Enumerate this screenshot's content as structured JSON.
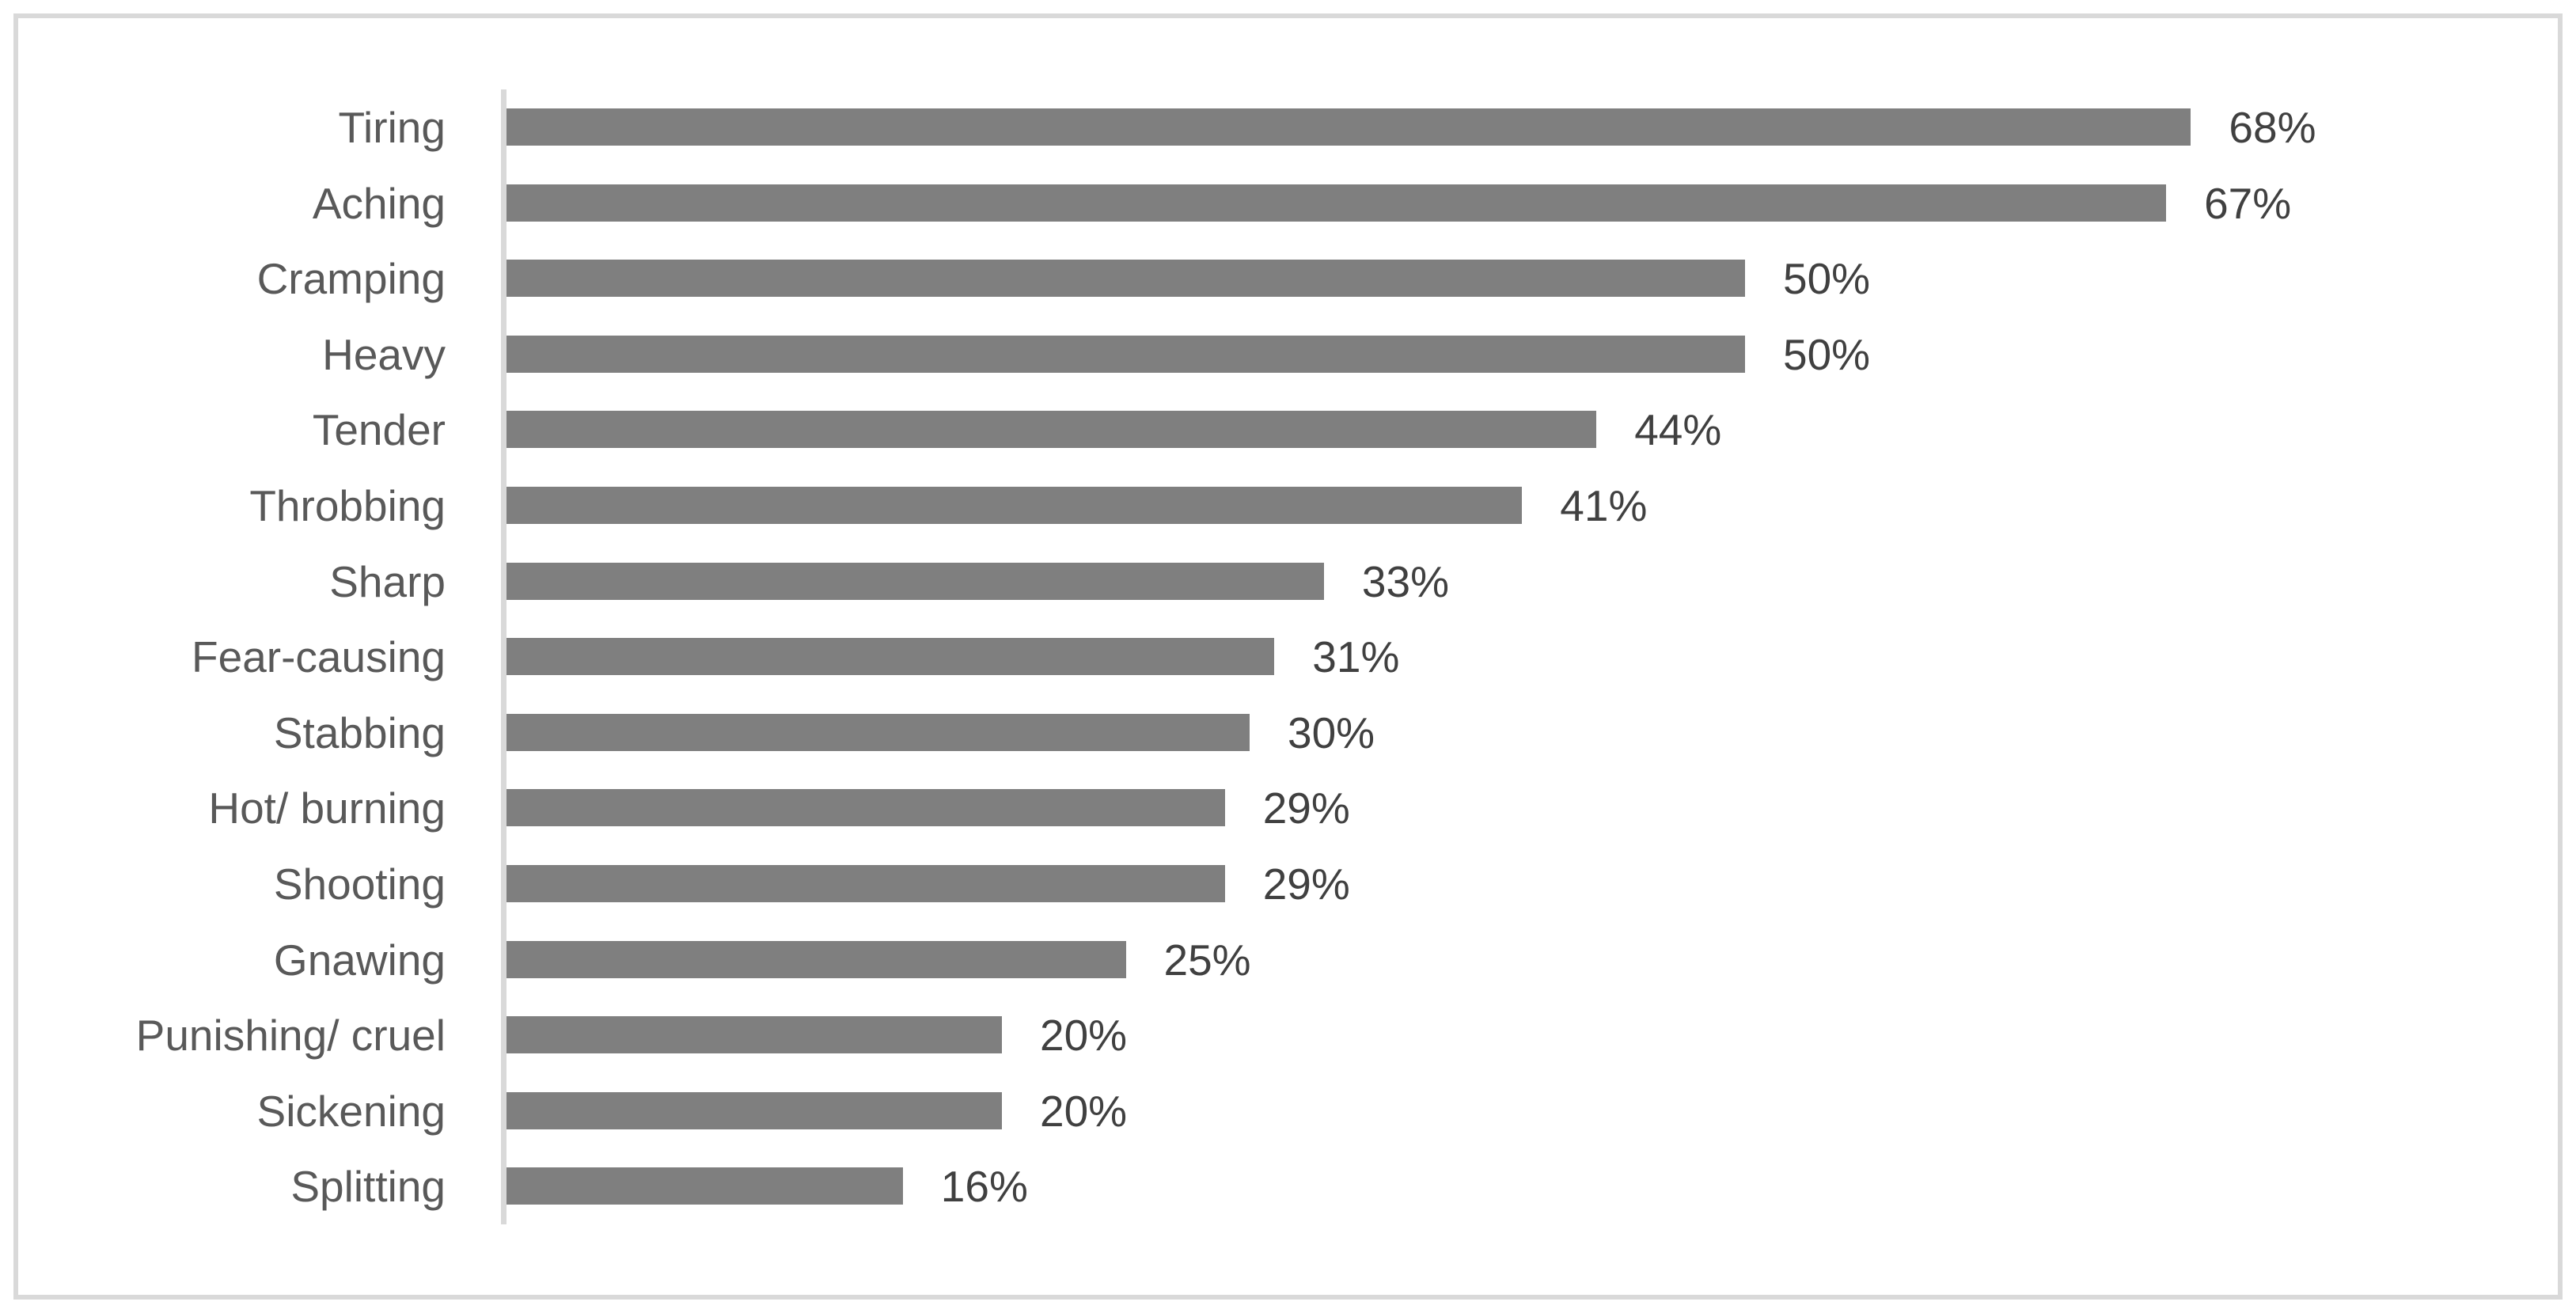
{
  "chart_data": {
    "type": "bar",
    "orientation": "horizontal",
    "title": "",
    "xlabel": "",
    "ylabel": "",
    "categories": [
      "Tiring",
      "Aching",
      "Cramping",
      "Heavy",
      "Tender",
      "Throbbing",
      "Sharp",
      "Fear-causing",
      "Stabbing",
      "Hot/ burning",
      "Shooting",
      "Gnawing",
      "Punishing/ cruel",
      "Sickening",
      "Splitting"
    ],
    "values": [
      68,
      67,
      50,
      50,
      44,
      41,
      33,
      31,
      30,
      29,
      29,
      25,
      20,
      20,
      16
    ],
    "data_labels": [
      "68%",
      "67%",
      "50%",
      "50%",
      "44%",
      "41%",
      "33%",
      "31%",
      "30%",
      "29%",
      "29%",
      "25%",
      "20%",
      "20%",
      "16%"
    ],
    "unit": "%",
    "xlim": [
      0,
      80
    ],
    "grid": false,
    "legend": false,
    "bar_color": "#7f7f7f",
    "axis_line_color": "#d9d9d9",
    "category_label_color": "#595959",
    "value_label_color": "#404040",
    "frame_border_color": "#d9d9d9",
    "background_color": "#ffffff"
  }
}
